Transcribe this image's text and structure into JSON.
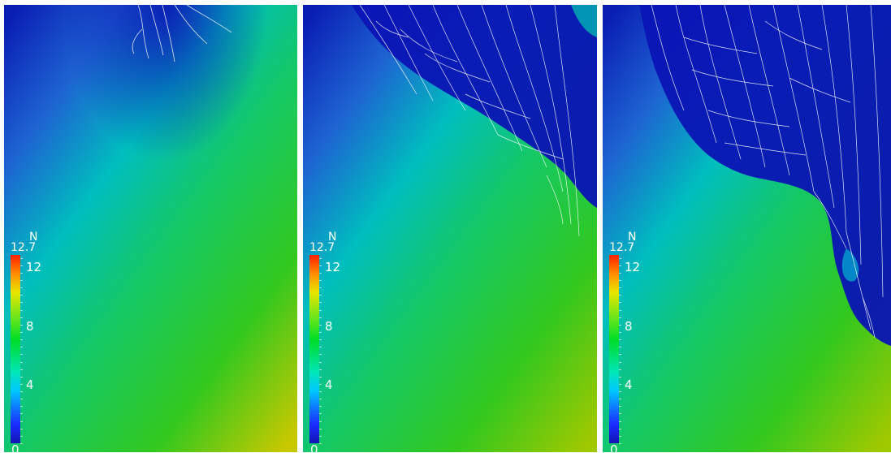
{
  "panels": [
    {
      "id": "panel-1",
      "colorbar": {
        "title": "N",
        "max": "12.7",
        "ticks": [
          "12",
          "8",
          "4"
        ],
        "min": "0"
      }
    },
    {
      "id": "panel-2",
      "colorbar": {
        "title": "N",
        "max": "12.7",
        "ticks": [
          "12",
          "8",
          "4"
        ],
        "min": "0"
      }
    },
    {
      "id": "panel-3",
      "colorbar": {
        "title": "N",
        "max": "12.7",
        "ticks": [
          "12",
          "8",
          "4"
        ],
        "min": "0"
      }
    }
  ],
  "colors": {
    "deep_blue": "#0a14b4",
    "blue": "#1a4ccc",
    "cyan": "#00c8b4",
    "green": "#1ec81e",
    "yellow_green": "#b4c800",
    "fracture_lines": "#ffffff"
  }
}
